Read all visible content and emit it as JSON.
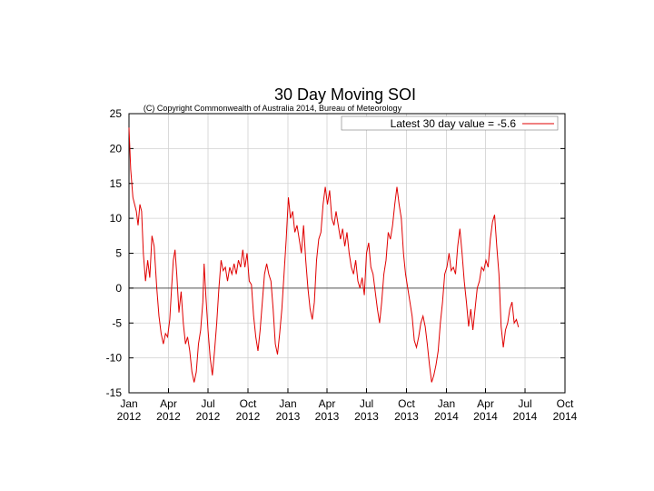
{
  "chart_data": {
    "type": "line",
    "title": "30 Day Moving SOI",
    "subtitle": "(C) Copyright Commonwealth of Australia 2014, Bureau of Meteorology",
    "legend": "Latest 30 day value = -5.6",
    "legend_position": "top-right",
    "grid": true,
    "zero_line": true,
    "ylim": [
      -15,
      25
    ],
    "yticks": [
      -15,
      -10,
      -5,
      0,
      5,
      10,
      15,
      20,
      25
    ],
    "xlim": [
      "2012-01-01",
      "2014-10-01"
    ],
    "xticks": [
      {
        "date": "2012-01-01",
        "month": "Jan",
        "year": "2012"
      },
      {
        "date": "2012-04-01",
        "month": "Apr",
        "year": "2012"
      },
      {
        "date": "2012-07-01",
        "month": "Jul",
        "year": "2012"
      },
      {
        "date": "2012-10-01",
        "month": "Oct",
        "year": "2012"
      },
      {
        "date": "2013-01-01",
        "month": "Jan",
        "year": "2013"
      },
      {
        "date": "2013-04-01",
        "month": "Apr",
        "year": "2013"
      },
      {
        "date": "2013-07-01",
        "month": "Jul",
        "year": "2013"
      },
      {
        "date": "2013-10-01",
        "month": "Oct",
        "year": "2013"
      },
      {
        "date": "2014-01-01",
        "month": "Jan",
        "year": "2014"
      },
      {
        "date": "2014-04-01",
        "month": "Apr",
        "year": "2014"
      },
      {
        "date": "2014-07-01",
        "month": "Jul",
        "year": "2014"
      },
      {
        "date": "2014-10-01",
        "month": "Oct",
        "year": "2014"
      }
    ],
    "series": [
      {
        "color": "#e00000",
        "points": [
          [
            "2012-01-01",
            23.0
          ],
          [
            "2012-01-05",
            17.0
          ],
          [
            "2012-01-10",
            13.0
          ],
          [
            "2012-01-14",
            12.0
          ],
          [
            "2012-01-18",
            11.0
          ],
          [
            "2012-01-22",
            9.0
          ],
          [
            "2012-01-26",
            12.0
          ],
          [
            "2012-01-30",
            11.0
          ],
          [
            "2012-02-03",
            5.0
          ],
          [
            "2012-02-08",
            1.0
          ],
          [
            "2012-02-13",
            4.0
          ],
          [
            "2012-02-18",
            1.5
          ],
          [
            "2012-02-23",
            7.5
          ],
          [
            "2012-02-28",
            6.0
          ],
          [
            "2012-03-05",
            0.0
          ],
          [
            "2012-03-10",
            -4.0
          ],
          [
            "2012-03-15",
            -6.5
          ],
          [
            "2012-03-20",
            -8.0
          ],
          [
            "2012-03-25",
            -6.5
          ],
          [
            "2012-03-30",
            -7.0
          ],
          [
            "2012-04-04",
            -4.5
          ],
          [
            "2012-04-08",
            0.0
          ],
          [
            "2012-04-12",
            4.0
          ],
          [
            "2012-04-16",
            5.5
          ],
          [
            "2012-04-20",
            2.0
          ],
          [
            "2012-04-25",
            -3.5
          ],
          [
            "2012-04-30",
            -0.5
          ],
          [
            "2012-05-05",
            -5.0
          ],
          [
            "2012-05-10",
            -8.0
          ],
          [
            "2012-05-15",
            -7.0
          ],
          [
            "2012-05-20",
            -9.0
          ],
          [
            "2012-05-25",
            -12.0
          ],
          [
            "2012-05-30",
            -13.5
          ],
          [
            "2012-06-04",
            -12.0
          ],
          [
            "2012-06-09",
            -8.0
          ],
          [
            "2012-06-14",
            -6.0
          ],
          [
            "2012-06-19",
            -2.0
          ],
          [
            "2012-06-22",
            3.5
          ],
          [
            "2012-06-26",
            -1.0
          ],
          [
            "2012-07-01",
            -6.0
          ],
          [
            "2012-07-06",
            -10.0
          ],
          [
            "2012-07-11",
            -12.5
          ],
          [
            "2012-07-16",
            -9.0
          ],
          [
            "2012-07-21",
            -5.0
          ],
          [
            "2012-07-26",
            0.0
          ],
          [
            "2012-07-31",
            4.0
          ],
          [
            "2012-08-05",
            2.5
          ],
          [
            "2012-08-10",
            3.0
          ],
          [
            "2012-08-15",
            1.0
          ],
          [
            "2012-08-20",
            3.0
          ],
          [
            "2012-08-25",
            2.0
          ],
          [
            "2012-08-30",
            3.5
          ],
          [
            "2012-09-04",
            2.0
          ],
          [
            "2012-09-09",
            4.0
          ],
          [
            "2012-09-14",
            3.0
          ],
          [
            "2012-09-19",
            5.5
          ],
          [
            "2012-09-24",
            3.0
          ],
          [
            "2012-09-29",
            5.0
          ],
          [
            "2012-10-04",
            1.0
          ],
          [
            "2012-10-09",
            0.5
          ],
          [
            "2012-10-14",
            -4.0
          ],
          [
            "2012-10-19",
            -7.0
          ],
          [
            "2012-10-24",
            -9.0
          ],
          [
            "2012-10-29",
            -6.0
          ],
          [
            "2012-11-03",
            -2.0
          ],
          [
            "2012-11-08",
            2.0
          ],
          [
            "2012-11-13",
            3.5
          ],
          [
            "2012-11-18",
            2.0
          ],
          [
            "2012-11-23",
            1.0
          ],
          [
            "2012-11-28",
            -3.0
          ],
          [
            "2012-12-03",
            -8.0
          ],
          [
            "2012-12-08",
            -9.5
          ],
          [
            "2012-12-13",
            -6.5
          ],
          [
            "2012-12-18",
            -3.0
          ],
          [
            "2012-12-23",
            2.0
          ],
          [
            "2012-12-28",
            7.0
          ],
          [
            "2013-01-02",
            13.0
          ],
          [
            "2013-01-07",
            10.0
          ],
          [
            "2013-01-12",
            11.0
          ],
          [
            "2013-01-17",
            8.0
          ],
          [
            "2013-01-22",
            9.0
          ],
          [
            "2013-01-27",
            7.0
          ],
          [
            "2013-02-01",
            5.0
          ],
          [
            "2013-02-06",
            9.0
          ],
          [
            "2013-02-11",
            4.0
          ],
          [
            "2013-02-16",
            0.0
          ],
          [
            "2013-02-21",
            -3.0
          ],
          [
            "2013-02-26",
            -4.5
          ],
          [
            "2013-03-03",
            -2.0
          ],
          [
            "2013-03-08",
            4.0
          ],
          [
            "2013-03-13",
            7.0
          ],
          [
            "2013-03-18",
            8.0
          ],
          [
            "2013-03-23",
            12.0
          ],
          [
            "2013-03-28",
            14.5
          ],
          [
            "2013-04-02",
            12.0
          ],
          [
            "2013-04-07",
            14.0
          ],
          [
            "2013-04-12",
            10.0
          ],
          [
            "2013-04-17",
            9.0
          ],
          [
            "2013-04-22",
            11.0
          ],
          [
            "2013-04-27",
            9.0
          ],
          [
            "2013-05-02",
            7.0
          ],
          [
            "2013-05-07",
            8.5
          ],
          [
            "2013-05-12",
            6.0
          ],
          [
            "2013-05-17",
            8.0
          ],
          [
            "2013-05-22",
            5.0
          ],
          [
            "2013-05-27",
            3.0
          ],
          [
            "2013-06-01",
            2.0
          ],
          [
            "2013-06-06",
            4.0
          ],
          [
            "2013-06-11",
            1.0
          ],
          [
            "2013-06-16",
            0.0
          ],
          [
            "2013-06-21",
            1.5
          ],
          [
            "2013-06-26",
            -1.0
          ],
          [
            "2013-07-01",
            5.0
          ],
          [
            "2013-07-06",
            6.5
          ],
          [
            "2013-07-11",
            3.0
          ],
          [
            "2013-07-16",
            2.0
          ],
          [
            "2013-07-21",
            -0.5
          ],
          [
            "2013-07-26",
            -3.0
          ],
          [
            "2013-07-31",
            -5.0
          ],
          [
            "2013-08-05",
            -2.0
          ],
          [
            "2013-08-10",
            2.0
          ],
          [
            "2013-08-15",
            4.0
          ],
          [
            "2013-08-20",
            8.0
          ],
          [
            "2013-08-25",
            7.0
          ],
          [
            "2013-08-30",
            9.0
          ],
          [
            "2013-09-04",
            12.0
          ],
          [
            "2013-09-09",
            14.5
          ],
          [
            "2013-09-14",
            12.0
          ],
          [
            "2013-09-19",
            10.0
          ],
          [
            "2013-09-24",
            5.0
          ],
          [
            "2013-09-29",
            2.0
          ],
          [
            "2013-10-04",
            0.0
          ],
          [
            "2013-10-09",
            -2.0
          ],
          [
            "2013-10-14",
            -4.0
          ],
          [
            "2013-10-19",
            -7.5
          ],
          [
            "2013-10-24",
            -8.5
          ],
          [
            "2013-10-29",
            -7.0
          ],
          [
            "2013-11-03",
            -5.0
          ],
          [
            "2013-11-08",
            -4.0
          ],
          [
            "2013-11-13",
            -5.5
          ],
          [
            "2013-11-18",
            -8.0
          ],
          [
            "2013-11-23",
            -11.0
          ],
          [
            "2013-11-28",
            -13.5
          ],
          [
            "2013-12-03",
            -12.5
          ],
          [
            "2013-12-08",
            -11.0
          ],
          [
            "2013-12-13",
            -9.0
          ],
          [
            "2013-12-18",
            -5.0
          ],
          [
            "2013-12-23",
            -2.0
          ],
          [
            "2013-12-28",
            2.0
          ],
          [
            "2014-01-02",
            3.0
          ],
          [
            "2014-01-07",
            5.0
          ],
          [
            "2014-01-12",
            2.5
          ],
          [
            "2014-01-17",
            3.0
          ],
          [
            "2014-01-22",
            2.0
          ],
          [
            "2014-01-27",
            6.0
          ],
          [
            "2014-02-01",
            8.5
          ],
          [
            "2014-02-06",
            5.0
          ],
          [
            "2014-02-11",
            1.0
          ],
          [
            "2014-02-16",
            -2.0
          ],
          [
            "2014-02-21",
            -5.5
          ],
          [
            "2014-02-26",
            -3.0
          ],
          [
            "2014-03-03",
            -6.0
          ],
          [
            "2014-03-08",
            -3.0
          ],
          [
            "2014-03-13",
            0.0
          ],
          [
            "2014-03-18",
            1.0
          ],
          [
            "2014-03-23",
            3.0
          ],
          [
            "2014-03-28",
            2.5
          ],
          [
            "2014-04-02",
            4.0
          ],
          [
            "2014-04-07",
            3.0
          ],
          [
            "2014-04-12",
            7.0
          ],
          [
            "2014-04-17",
            9.5
          ],
          [
            "2014-04-22",
            10.5
          ],
          [
            "2014-04-27",
            6.0
          ],
          [
            "2014-05-02",
            2.0
          ],
          [
            "2014-05-07",
            -5.5
          ],
          [
            "2014-05-12",
            -8.5
          ],
          [
            "2014-05-17",
            -6.0
          ],
          [
            "2014-05-22",
            -5.0
          ],
          [
            "2014-05-27",
            -3.0
          ],
          [
            "2014-06-01",
            -2.0
          ],
          [
            "2014-06-06",
            -5.0
          ],
          [
            "2014-06-11",
            -4.5
          ],
          [
            "2014-06-16",
            -5.6
          ]
        ]
      }
    ]
  }
}
